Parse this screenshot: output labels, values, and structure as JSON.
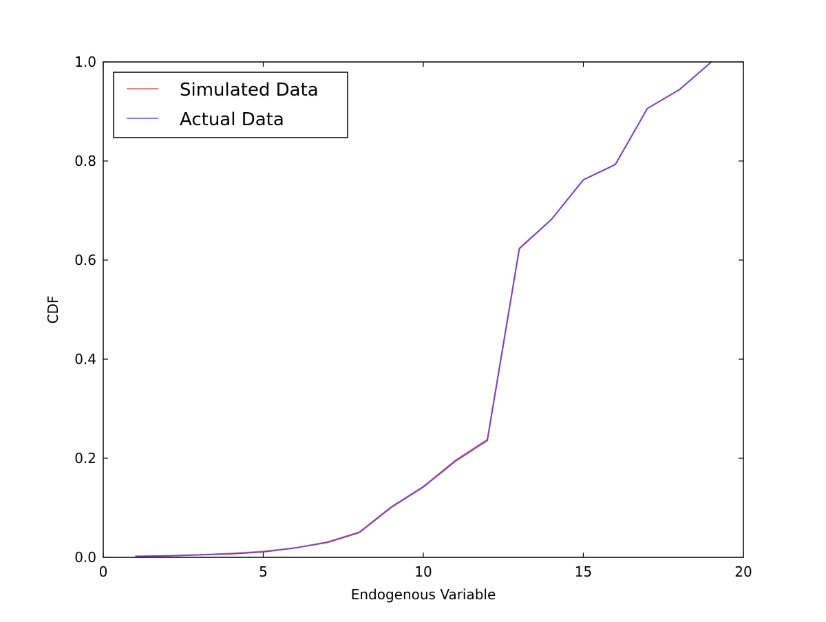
{
  "chart_data": {
    "type": "line",
    "title": "",
    "xlabel": "Endogenous Variable",
    "ylabel": "CDF",
    "xlim": [
      0,
      20
    ],
    "ylim": [
      0,
      1.0
    ],
    "xticks": [
      0,
      5,
      10,
      15,
      20
    ],
    "xtick_labels": [
      "0",
      "5",
      "10",
      "15",
      "20"
    ],
    "yticks": [
      0.0,
      0.2,
      0.4,
      0.6,
      0.8,
      1.0
    ],
    "ytick_labels": [
      "0.0",
      "0.2",
      "0.4",
      "0.6",
      "0.8",
      "1.0"
    ],
    "grid": false,
    "legend_position": "top-left",
    "x": [
      1,
      2,
      3,
      4,
      5,
      6,
      7,
      8,
      9,
      10,
      11,
      12,
      13,
      14,
      15,
      16,
      17,
      18,
      19
    ],
    "series": [
      {
        "name": "Simulated Data",
        "color": "#e8837f",
        "values": [
          0.002,
          0.003,
          0.005,
          0.008,
          0.012,
          0.019,
          0.031,
          0.051,
          0.102,
          0.143,
          0.196,
          0.238,
          0.624,
          0.682,
          0.762,
          0.793,
          0.906,
          0.944,
          1.0
        ]
      },
      {
        "name": "Actual Data",
        "color": "#8080ff",
        "values": [
          0.002,
          0.003,
          0.005,
          0.007,
          0.011,
          0.019,
          0.03,
          0.05,
          0.101,
          0.142,
          0.194,
          0.236,
          0.623,
          0.682,
          0.762,
          0.793,
          0.906,
          0.944,
          1.0
        ]
      }
    ],
    "overlap_color": "#7b3fc4"
  }
}
